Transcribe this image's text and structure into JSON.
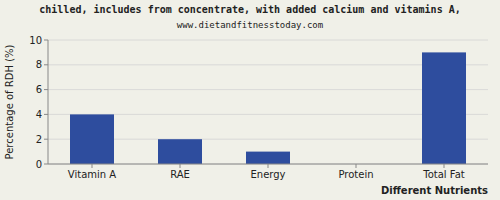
{
  "chart_data": {
    "type": "bar",
    "title": "chilled, includes from concentrate, with added calcium and vitamins A,",
    "subtitle": "www.dietandfitnesstoday.com",
    "x_label": "Different Nutrients",
    "y_label": "Percentage of RDH (%)",
    "categories": [
      "Vitamin A",
      "RAE",
      "Energy",
      "Protein",
      "Total Fat"
    ],
    "values": [
      4.0,
      2.0,
      1.0,
      0.0,
      9.0
    ],
    "color": "#2e4d9e",
    "ylim": [
      0,
      10
    ],
    "yticks": [
      0,
      2,
      4,
      6,
      8,
      10
    ],
    "grid": true
  }
}
